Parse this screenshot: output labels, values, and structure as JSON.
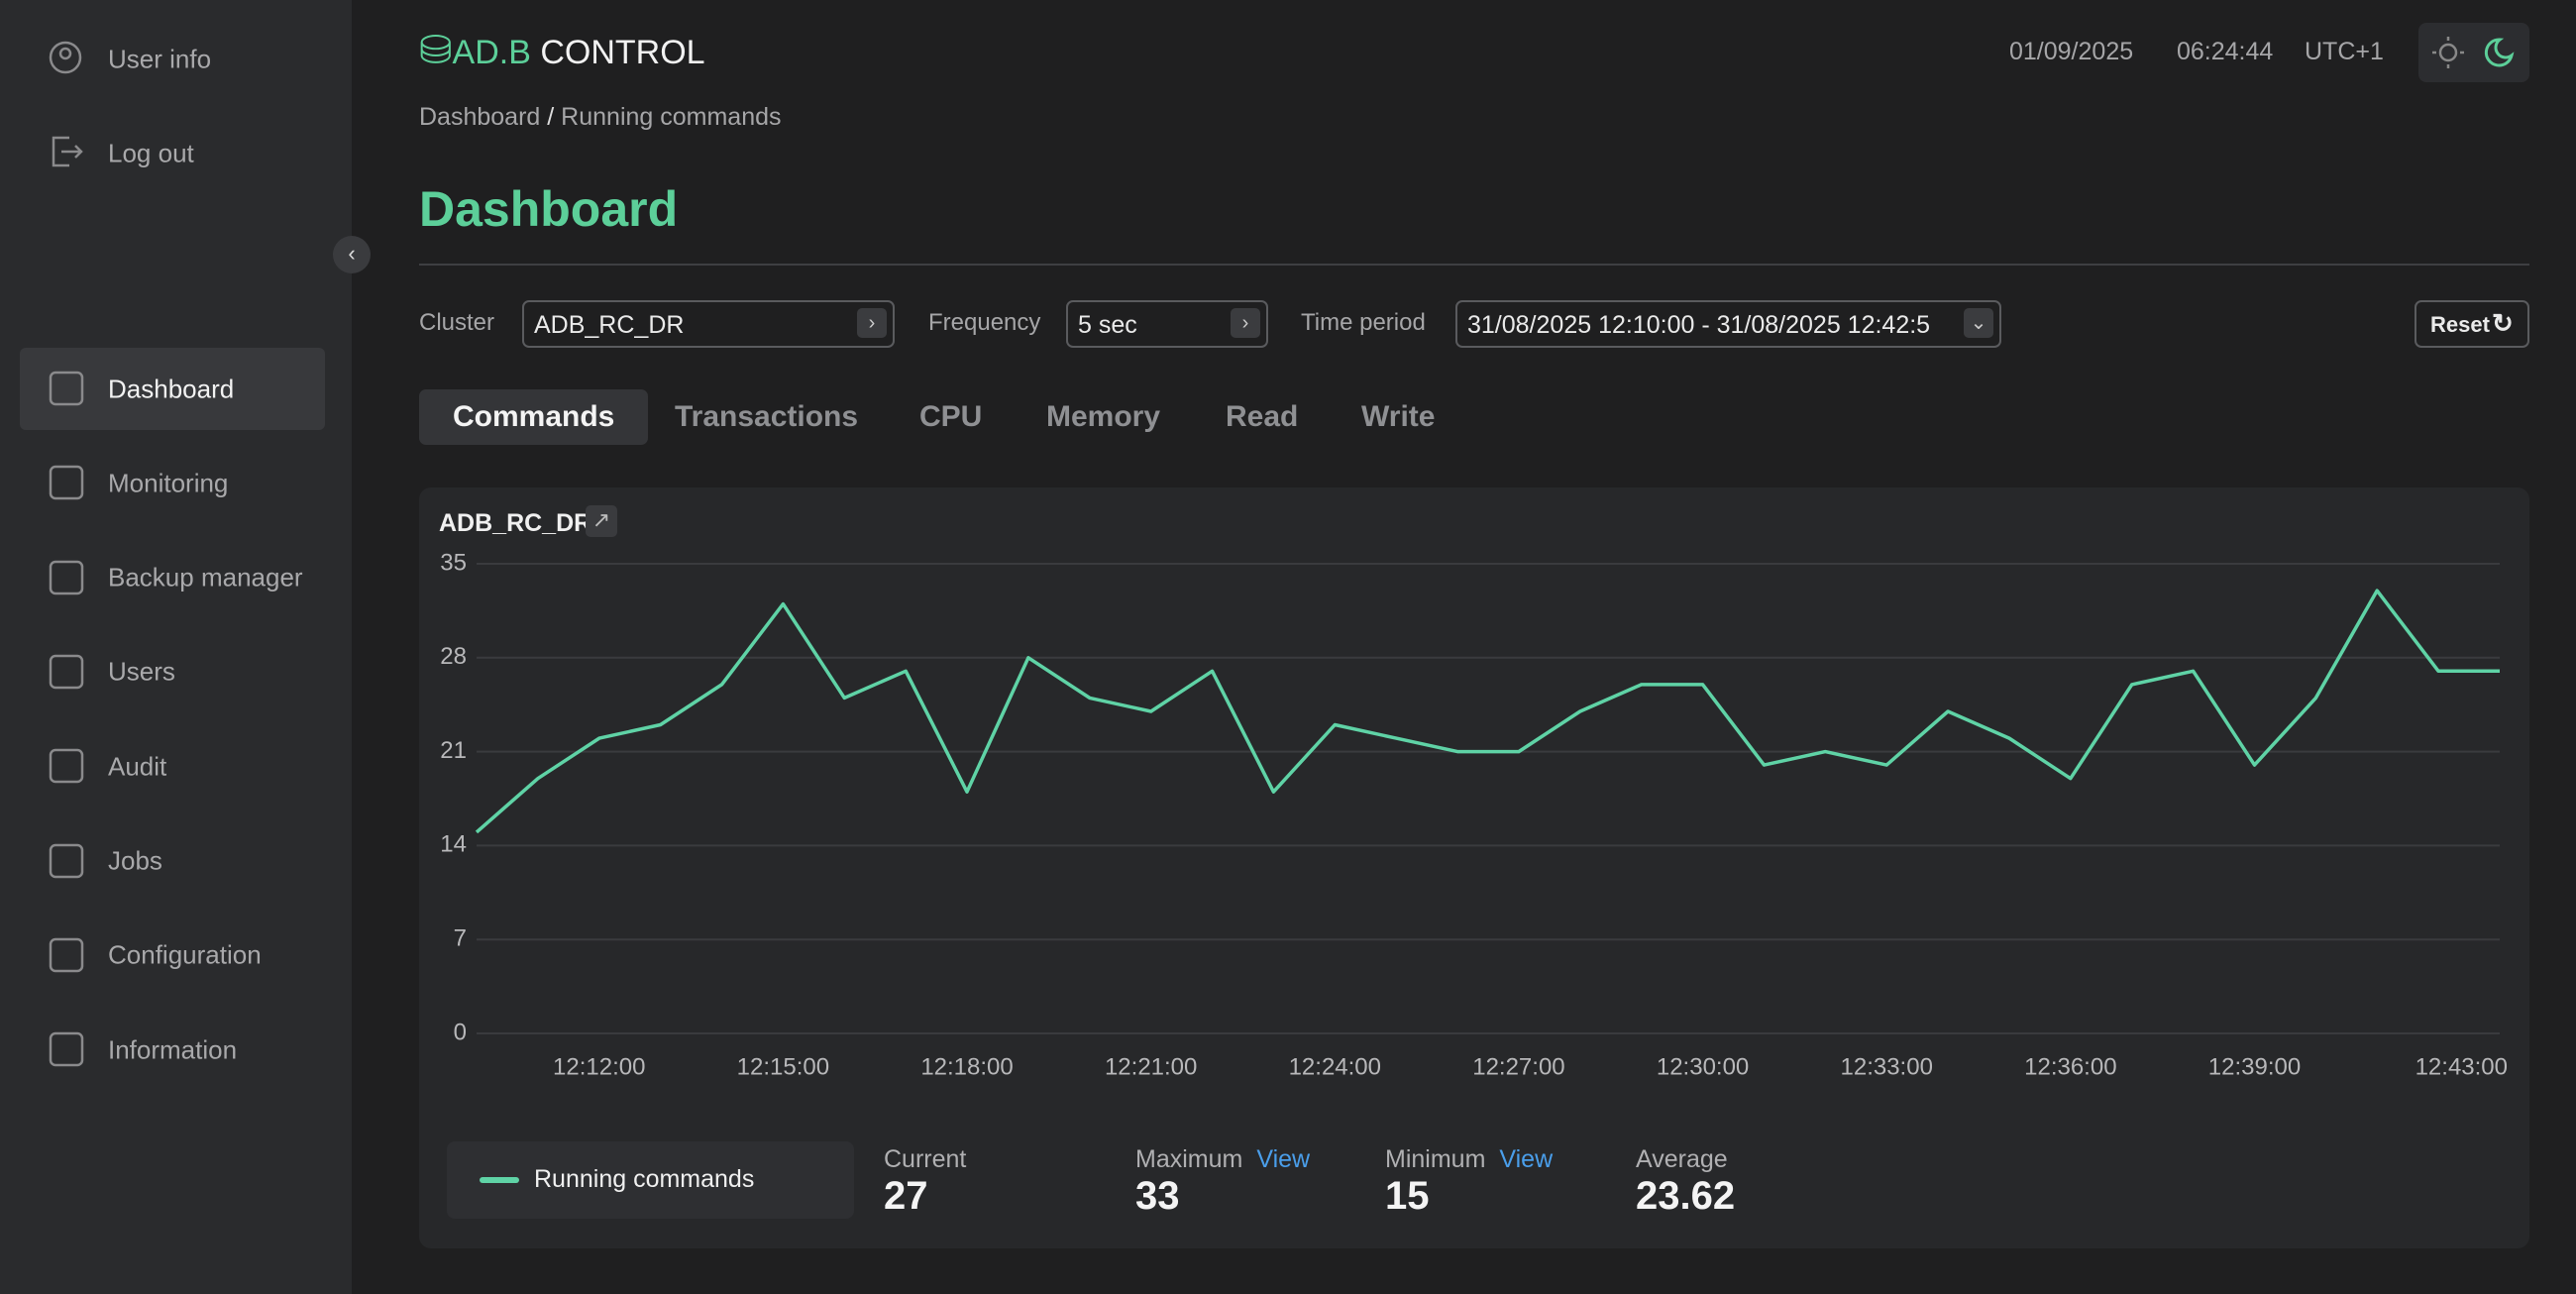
{
  "sidebar": {
    "account": [
      "User info",
      "Log out"
    ],
    "nav": [
      "Dashboard",
      "Monitoring",
      "Backup manager",
      "Users",
      "Audit",
      "Jobs",
      "Configuration",
      "Information"
    ]
  },
  "header": {
    "logo_accent": "AD.B",
    "logo_text": "CONTROL",
    "date": "01/09/2025",
    "time": "06:24:44",
    "timezone": "UTC+1"
  },
  "breadcrumb": [
    "Dashboard",
    "Running commands"
  ],
  "title": "Dashboard",
  "filters": {
    "cluster_label": "Cluster",
    "cluster": "ADB_RC_DR",
    "frequency_label": "Frequency",
    "frequency": "5 sec",
    "period_label": "Time period",
    "period": "31/08/2025 12:10:00 - 31/08/2025 12:42:5",
    "reset": "Reset"
  },
  "tabs": [
    "Commands",
    "Transactions",
    "CPU",
    "Memory",
    "Read",
    "Write"
  ],
  "chart_data": {
    "type": "line",
    "title": "ADB_RC_DR",
    "categories": [
      null,
      null,
      "12:12:00",
      null,
      null,
      "12:15:00",
      null,
      null,
      "12:18:00",
      null,
      null,
      "12:21:00",
      null,
      null,
      "12:24:00",
      null,
      null,
      "12:27:00",
      null,
      null,
      "12:30:00",
      null,
      null,
      "12:33:00",
      null,
      null,
      "12:36:00",
      null,
      null,
      "12:39:00",
      null,
      null,
      null,
      "12:43:00"
    ],
    "series": [
      {
        "name": "Running commands",
        "color": "#5fd3a6",
        "values": [
          15,
          19,
          22,
          23,
          26,
          32,
          25,
          27,
          18,
          28,
          25,
          24,
          27,
          18,
          23,
          22,
          21,
          21,
          24,
          26,
          26,
          20,
          21,
          20,
          24,
          22,
          19,
          26,
          27,
          20,
          25,
          33,
          27,
          27
        ]
      }
    ],
    "ylim": [
      0,
      35
    ],
    "yticks": [
      0,
      7,
      14,
      21,
      28,
      35
    ],
    "grid": true
  },
  "stats": [
    {
      "label": "Current",
      "value": 27
    },
    {
      "label": "Maximum",
      "link": "View",
      "value": 33
    },
    {
      "label": "Minimum",
      "link": "View",
      "value": 15
    },
    {
      "label": "Average",
      "value": 23.62
    }
  ]
}
